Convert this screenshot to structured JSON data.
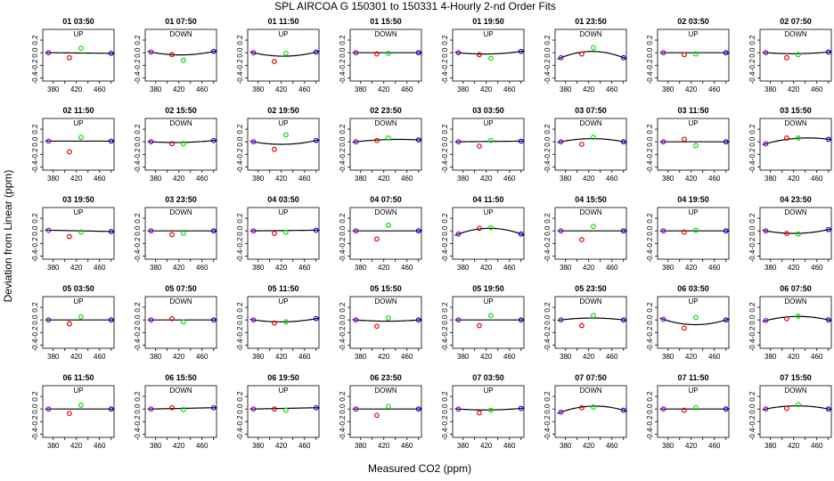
{
  "figure": {
    "title": "SPL   AIRCOA G   150301 to 150331   4-Hourly 2-nd Order Fits",
    "xlabel": "Measured CO2 (ppm)",
    "ylabel": "Deviation from Linear (ppm)"
  },
  "colors": {
    "standard_low": "#8800cc",
    "standard_mid1": "#dd0000",
    "standard_mid2": "#00dd00",
    "standard_high": "#0000dd",
    "fit_curve": "#000000"
  },
  "chart_data": {
    "type": "scatter",
    "layout": "grid 5 rows x 8 columns of small multiples",
    "x_ticks": [
      380,
      420,
      460
    ],
    "xlim": [
      362,
      485
    ],
    "y_ticks": [
      -0.4,
      -0.2,
      0.0,
      0.2
    ],
    "ylim": [
      -0.45,
      0.37
    ],
    "standard_x": [
      372,
      408,
      428,
      480
    ],
    "panels": [
      {
        "title": "01 03:50",
        "direction": "UP",
        "y": [
          0.0,
          -0.08,
          0.07,
          -0.01
        ],
        "c": 0.0
      },
      {
        "title": "01 07:50",
        "direction": "DOWN",
        "y": [
          0.01,
          -0.03,
          -0.12,
          0.02
        ],
        "c": 0.05
      },
      {
        "title": "01 11:50",
        "direction": "UP",
        "y": [
          0.0,
          -0.14,
          -0.01,
          0.01
        ],
        "c": 0.06
      },
      {
        "title": "01 15:50",
        "direction": "DOWN",
        "y": [
          0.0,
          -0.02,
          -0.01,
          0.0
        ],
        "c": 0.0
      },
      {
        "title": "01 19:50",
        "direction": "UP",
        "y": [
          0.0,
          -0.03,
          -0.09,
          0.02
        ],
        "c": 0.03
      },
      {
        "title": "01 23:50",
        "direction": "DOWN",
        "y": [
          -0.08,
          -0.02,
          0.08,
          -0.08
        ],
        "c": -0.1
      },
      {
        "title": "02 03:50",
        "direction": "UP",
        "y": [
          0.0,
          -0.03,
          -0.02,
          0.0
        ],
        "c": 0.0
      },
      {
        "title": "02 07:50",
        "direction": "DOWN",
        "y": [
          0.0,
          -0.08,
          -0.03,
          0.01
        ],
        "c": 0.02
      },
      {
        "title": "02 11:50",
        "direction": "UP",
        "y": [
          0.01,
          -0.16,
          0.07,
          0.01
        ],
        "c": 0.0
      },
      {
        "title": "02 15:50",
        "direction": "DOWN",
        "y": [
          0.0,
          -0.03,
          -0.03,
          0.02
        ],
        "c": 0.02
      },
      {
        "title": "02 19:50",
        "direction": "UP",
        "y": [
          0.0,
          -0.12,
          0.11,
          0.02
        ],
        "c": 0.05
      },
      {
        "title": "02 23:50",
        "direction": "DOWN",
        "y": [
          0.0,
          0.02,
          0.06,
          0.03
        ],
        "c": -0.02
      },
      {
        "title": "03 03:50",
        "direction": "UP",
        "y": [
          0.0,
          -0.07,
          0.02,
          0.01
        ],
        "c": 0.0
      },
      {
        "title": "03 07:50",
        "direction": "DOWN",
        "y": [
          0.0,
          -0.04,
          0.07,
          0.0
        ],
        "c": -0.05
      },
      {
        "title": "03 11:50",
        "direction": "UP",
        "y": [
          0.0,
          0.04,
          -0.06,
          0.0
        ],
        "c": 0.0
      },
      {
        "title": "03 15:50",
        "direction": "DOWN",
        "y": [
          -0.03,
          0.06,
          0.06,
          0.04
        ],
        "c": -0.05
      },
      {
        "title": "03 19:50",
        "direction": "UP",
        "y": [
          0.01,
          -0.09,
          -0.02,
          -0.01
        ],
        "c": 0.0
      },
      {
        "title": "03 23:50",
        "direction": "DOWN",
        "y": [
          0.0,
          -0.06,
          -0.04,
          0.0
        ],
        "c": 0.0
      },
      {
        "title": "04 03:50",
        "direction": "UP",
        "y": [
          0.0,
          -0.04,
          -0.02,
          0.01
        ],
        "c": 0.0
      },
      {
        "title": "04 07:50",
        "direction": "DOWN",
        "y": [
          0.0,
          -0.13,
          0.09,
          0.0
        ],
        "c": 0.0
      },
      {
        "title": "04 11:50",
        "direction": "UP",
        "y": [
          -0.05,
          0.04,
          0.05,
          -0.05
        ],
        "c": -0.09
      },
      {
        "title": "04 15:50",
        "direction": "DOWN",
        "y": [
          0.0,
          -0.14,
          0.07,
          0.0
        ],
        "c": 0.0
      },
      {
        "title": "04 19:50",
        "direction": "UP",
        "y": [
          0.0,
          -0.02,
          0.01,
          0.0
        ],
        "c": 0.0
      },
      {
        "title": "04 23:50",
        "direction": "DOWN",
        "y": [
          0.0,
          -0.04,
          -0.05,
          0.02
        ],
        "c": 0.05
      },
      {
        "title": "05 03:50",
        "direction": "UP",
        "y": [
          0.0,
          -0.06,
          0.05,
          0.0
        ],
        "c": 0.0
      },
      {
        "title": "05 07:50",
        "direction": "DOWN",
        "y": [
          0.0,
          0.02,
          -0.03,
          0.0
        ],
        "c": 0.0
      },
      {
        "title": "05 11:50",
        "direction": "UP",
        "y": [
          0.0,
          -0.05,
          -0.03,
          0.02
        ],
        "c": 0.04
      },
      {
        "title": "05 15:50",
        "direction": "DOWN",
        "y": [
          0.0,
          -0.1,
          0.03,
          0.0
        ],
        "c": 0.02
      },
      {
        "title": "05 19:50",
        "direction": "UP",
        "y": [
          0.0,
          -0.09,
          0.07,
          0.0
        ],
        "c": 0.0
      },
      {
        "title": "05 23:50",
        "direction": "DOWN",
        "y": [
          0.0,
          -0.09,
          0.07,
          0.0
        ],
        "c": -0.03
      },
      {
        "title": "06 03:50",
        "direction": "UP",
        "y": [
          0.01,
          -0.13,
          0.04,
          0.0
        ],
        "c": 0.08
      },
      {
        "title": "06 07:50",
        "direction": "DOWN",
        "y": [
          -0.01,
          0.02,
          0.06,
          0.0
        ],
        "c": -0.06
      },
      {
        "title": "06 11:50",
        "direction": "UP",
        "y": [
          0.0,
          -0.07,
          0.06,
          0.0
        ],
        "c": 0.0
      },
      {
        "title": "06 15:50",
        "direction": "DOWN",
        "y": [
          0.0,
          0.02,
          -0.01,
          0.02
        ],
        "c": 0.0
      },
      {
        "title": "06 19:50",
        "direction": "UP",
        "y": [
          0.0,
          0.0,
          -0.02,
          0.02
        ],
        "c": 0.0
      },
      {
        "title": "06 23:50",
        "direction": "DOWN",
        "y": [
          0.0,
          -0.1,
          0.04,
          0.0
        ],
        "c": 0.0
      },
      {
        "title": "07 03:50",
        "direction": "UP",
        "y": [
          0.0,
          -0.06,
          -0.02,
          0.01
        ],
        "c": 0.02
      },
      {
        "title": "07 07:50",
        "direction": "DOWN",
        "y": [
          -0.05,
          0.02,
          0.03,
          -0.02
        ],
        "c": -0.08
      },
      {
        "title": "07 11:50",
        "direction": "UP",
        "y": [
          0.0,
          -0.02,
          0.02,
          0.0
        ],
        "c": 0.0
      },
      {
        "title": "07 15:50",
        "direction": "DOWN",
        "y": [
          0.0,
          0.01,
          0.07,
          0.0
        ],
        "c": -0.05
      }
    ]
  }
}
